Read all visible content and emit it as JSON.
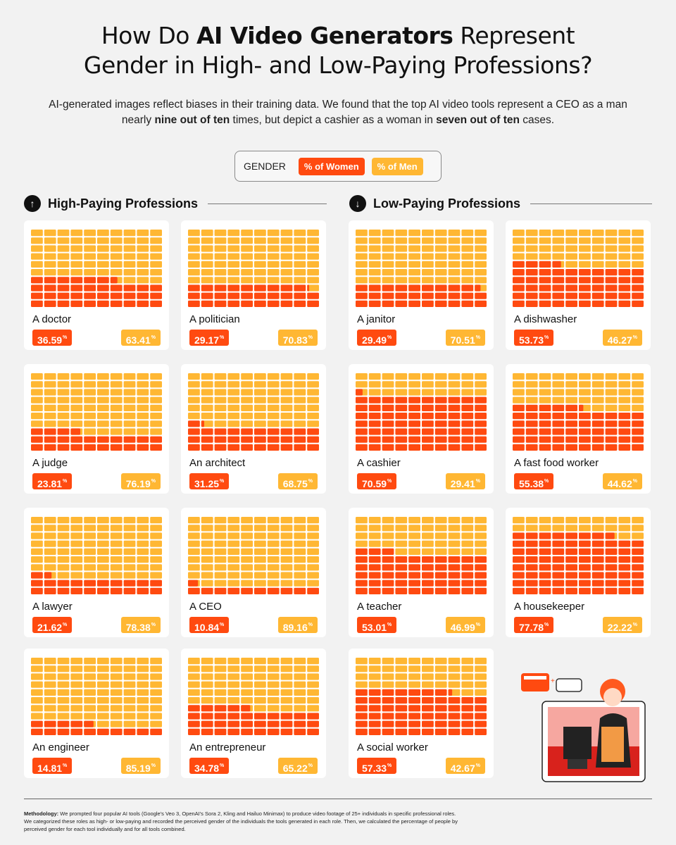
{
  "header": {
    "title_1a": "How Do ",
    "title_1b": "AI Video Generators",
    "title_1c": " Represent",
    "title_2": "Gender in High- and Low-Paying Professions?",
    "sub_1": "AI-generated images reflect biases in their training data. We found that the top AI video tools represent a CEO as a man",
    "sub_2a": "nearly ",
    "sub_2b": "nine out of ten",
    "sub_2c": " times, but depict a cashier as a woman in ",
    "sub_2d": "seven out of ten",
    "sub_2e": " cases."
  },
  "legend": {
    "label": "GENDER",
    "women": "% of Women",
    "men": "% of Men"
  },
  "colors": {
    "women": "#ff4a10",
    "men": "#ffb733",
    "men_light": "#ffb835",
    "background": "#f2f2f2",
    "card": "#ffffff"
  },
  "sections": {
    "high": {
      "title": "High-Paying Professions",
      "icon": "arrow-up-icon"
    },
    "low": {
      "title": "Low-Paying Professions",
      "icon": "arrow-down-icon"
    }
  },
  "chart_data": {
    "type": "waffle",
    "series": [
      {
        "name": "% of Women"
      },
      {
        "name": "% of Men"
      }
    ],
    "high_paying": [
      {
        "label": "A doctor",
        "women": 36.59,
        "men": 63.41
      },
      {
        "label": "A politician",
        "women": 29.17,
        "men": 70.83
      },
      {
        "label": "A judge",
        "women": 23.81,
        "men": 76.19
      },
      {
        "label": "An architect",
        "women": 31.25,
        "men": 68.75
      },
      {
        "label": "A lawyer",
        "women": 21.62,
        "men": 78.38
      },
      {
        "label": "A CEO",
        "women": 10.84,
        "men": 89.16
      },
      {
        "label": "An engineer",
        "women": 14.81,
        "men": 85.19
      },
      {
        "label": "An entrepreneur",
        "women": 34.78,
        "men": 65.22
      }
    ],
    "low_paying": [
      {
        "label": "A janitor",
        "women": 29.49,
        "men": 70.51
      },
      {
        "label": "A dishwasher",
        "women": 53.73,
        "men": 46.27
      },
      {
        "label": "A cashier",
        "women": 70.59,
        "men": 29.41
      },
      {
        "label": "A fast food worker",
        "women": 55.38,
        "men": 44.62
      },
      {
        "label": "A teacher",
        "women": 53.01,
        "men": 46.99
      },
      {
        "label": "A housekeeper",
        "women": 77.78,
        "men": 22.22
      },
      {
        "label": "A social worker",
        "women": 57.33,
        "men": 42.67
      }
    ]
  },
  "footer": {
    "methodology_label": "Methodology:",
    "methodology_1": " We prompted four popular AI tools (Google's Veo 3, OpenAI's Sora 2, Kling and Hailuo Minimax) to produce video footage of 25+ individuals in specific professional roles.",
    "methodology_2": "We categorized these roles as high- or low-paying and recorded the perceived gender of the individuals the tools generated in each role. Then, we calculated the percentage of people by",
    "methodology_3": "perceived gender for each tool individually and for all tools combined."
  }
}
